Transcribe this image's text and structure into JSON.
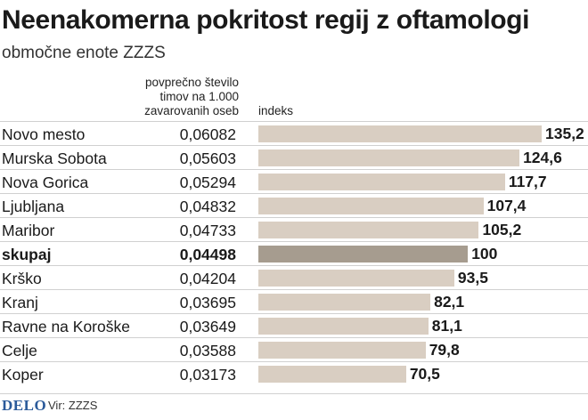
{
  "header": {
    "title": "Neenakomerna pokritost regij z oftamologi",
    "subtitle": "območne enote ZZZS"
  },
  "columns": {
    "value_header": [
      "povprečno število",
      "timov na 1.000",
      "zavarovanih oseb"
    ],
    "index_header": "indeks"
  },
  "footer": {
    "brand": "DELO",
    "source": "Vir: ZZZS"
  },
  "colors": {
    "bar": "#d9cec2",
    "bar_total": "#a69c8f",
    "brand": "#2b5a9a"
  },
  "chart_data": {
    "type": "bar",
    "orientation": "horizontal",
    "title": "Neenakomerna pokritost regij z oftamologi",
    "subtitle": "območne enote ZZZS",
    "xlim": [
      0,
      140
    ],
    "grid": false,
    "rows": [
      {
        "name": "Novo mesto",
        "value": "0,06082",
        "index": 135.2,
        "index_label": "135,2"
      },
      {
        "name": "Murska Sobota",
        "value": "0,05603",
        "index": 124.6,
        "index_label": "124,6"
      },
      {
        "name": "Nova Gorica",
        "value": "0,05294",
        "index": 117.7,
        "index_label": "117,7"
      },
      {
        "name": "Ljubljana",
        "value": "0,04832",
        "index": 107.4,
        "index_label": "107,4"
      },
      {
        "name": "Maribor",
        "value": "0,04733",
        "index": 105.2,
        "index_label": "105,2"
      },
      {
        "name": "skupaj",
        "value": "0,04498",
        "index": 100,
        "index_label": "100",
        "total": true
      },
      {
        "name": "Krško",
        "value": "0,04204",
        "index": 93.5,
        "index_label": "93,5"
      },
      {
        "name": "Kranj",
        "value": "0,03695",
        "index": 82.1,
        "index_label": "82,1"
      },
      {
        "name": "Ravne na Koroške",
        "value": "0,03649",
        "index": 81.1,
        "index_label": "81,1"
      },
      {
        "name": "Celje",
        "value": "0,03588",
        "index": 79.8,
        "index_label": "79,8"
      },
      {
        "name": "Koper",
        "value": "0,03173",
        "index": 70.5,
        "index_label": "70,5"
      }
    ]
  }
}
